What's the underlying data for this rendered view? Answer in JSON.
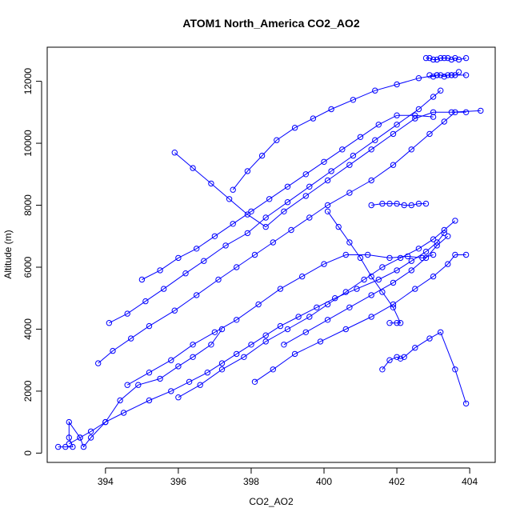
{
  "chart_data": {
    "type": "line",
    "title": "ATOM1 North_America CO2_AO2",
    "xlabel": "CO2_AO2",
    "ylabel": "Altitude (m)",
    "xlim": [
      392.4,
      404.7
    ],
    "ylim": [
      -300,
      13100
    ],
    "xticks": [
      394,
      396,
      398,
      400,
      402,
      404
    ],
    "yticks": [
      0,
      2000,
      4000,
      6000,
      8000,
      10000,
      12000
    ],
    "grid": false,
    "marker": "open-circle",
    "color": "#0000ff",
    "series": [
      {
        "profile": 1,
        "x": [
          392.7,
          392.9,
          393.1,
          393.0,
          393.0,
          393.3,
          393.4,
          393.6,
          394.0,
          394.4,
          394.9,
          395.5,
          396.0,
          396.4,
          396.9,
          397.2
        ],
        "y": [
          200,
          200,
          200,
          500,
          1000,
          500,
          200,
          500,
          1000,
          1700,
          2200,
          2400,
          2800,
          3100,
          3500,
          4000
        ]
      },
      {
        "profile": 2,
        "x": [
          393.0,
          393.3,
          393.6,
          394.0,
          394.5,
          395.2,
          395.8,
          396.3,
          396.8,
          397.2,
          397.6,
          398.0,
          398.4,
          398.8,
          399.3,
          399.8,
          400.3,
          400.9,
          401.5,
          402.0,
          402.4,
          402.8,
          403.1,
          403.3
        ],
        "y": [
          300,
          500,
          700,
          1000,
          1300,
          1700,
          2000,
          2300,
          2600,
          2900,
          3200,
          3500,
          3800,
          4100,
          4400,
          4700,
          5000,
          5300,
          5600,
          5900,
          6200,
          6500,
          6800,
          7100
        ]
      },
      {
        "profile": 3,
        "x": [
          393.8,
          394.2,
          394.7,
          395.2,
          395.9,
          396.5,
          397.1,
          397.6,
          398.1,
          398.6,
          399.1,
          399.6,
          400.1,
          400.7,
          401.3,
          401.9,
          402.4,
          402.9,
          403.3,
          403.6,
          403.9
        ],
        "y": [
          2900,
          3300,
          3700,
          4100,
          4600,
          5100,
          5600,
          6000,
          6400,
          6800,
          7200,
          7600,
          8000,
          8400,
          8800,
          9300,
          9800,
          10300,
          10700,
          11000,
          11000
        ]
      },
      {
        "profile": 4,
        "x": [
          394.1,
          394.6,
          395.1,
          395.6,
          396.2,
          396.7,
          397.3,
          397.9,
          398.4,
          399.0,
          399.6,
          400.2,
          400.8,
          401.4,
          402.0,
          402.6,
          403.0,
          403.2
        ],
        "y": [
          4200,
          4500,
          4900,
          5300,
          5800,
          6200,
          6700,
          7100,
          7600,
          8100,
          8600,
          9100,
          9600,
          10100,
          10600,
          11100,
          11500,
          11700
        ]
      },
      {
        "profile": 5,
        "x": [
          395.9,
          396.4,
          396.9,
          397.4,
          397.9,
          398.4,
          398.9,
          399.5,
          400.1,
          400.7,
          401.3,
          401.9,
          402.5,
          403.0,
          403.5,
          404.3
        ],
        "y": [
          9700,
          9200,
          8700,
          8200,
          7700,
          7300,
          7800,
          8300,
          8800,
          9300,
          9800,
          10300,
          10800,
          11000,
          11000,
          11050
        ]
      },
      {
        "profile": 6,
        "x": [
          397.5,
          397.9,
          398.3,
          398.7,
          399.2,
          399.7,
          400.2,
          400.8,
          401.4,
          402.0,
          402.6,
          403.1,
          403.5,
          403.9
        ],
        "y": [
          8500,
          9100,
          9600,
          10100,
          10500,
          10800,
          11100,
          11400,
          11700,
          11900,
          12100,
          12200,
          12200,
          12200
        ]
      },
      {
        "profile": 7,
        "x": [
          398.1,
          398.6,
          399.2,
          399.9,
          400.6,
          401.3,
          401.9,
          402.5,
          403.0,
          403.4,
          403.6,
          403.9
        ],
        "y": [
          2300,
          2700,
          3200,
          3600,
          4000,
          4400,
          4800,
          5300,
          5700,
          6100,
          6400,
          6400
        ]
      },
      {
        "profile": 8,
        "x": [
          396.0,
          396.6,
          397.2,
          397.8,
          398.4,
          399.0,
          399.6,
          400.1,
          400.6,
          401.1,
          401.6,
          402.1,
          402.6,
          403.0,
          403.3,
          403.6
        ],
        "y": [
          1800,
          2200,
          2700,
          3100,
          3600,
          4000,
          4400,
          4800,
          5200,
          5600,
          6000,
          6300,
          6600,
          6900,
          7200,
          7500
        ]
      },
      {
        "profile": 9,
        "x": [
          401.6,
          401.8,
          402.0,
          402.1,
          402.2,
          402.5,
          402.9,
          403.2,
          403.6,
          403.9
        ],
        "y": [
          2700,
          3000,
          3100,
          3050,
          3100,
          3400,
          3700,
          3900,
          2700,
          1600
        ]
      },
      {
        "profile": 10,
        "x": [
          401.8,
          402.0,
          402.1,
          401.9,
          401.6,
          401.3,
          401.0,
          400.7,
          400.4,
          400.1
        ],
        "y": [
          4200,
          4200,
          4200,
          4700,
          5200,
          5700,
          6300,
          6800,
          7300,
          7800
        ]
      },
      {
        "profile": 11,
        "x": [
          401.3,
          401.6,
          401.8,
          402.0,
          402.2,
          402.4,
          402.6,
          402.8
        ],
        "y": [
          8000,
          8050,
          8050,
          8050,
          8000,
          8000,
          8050,
          8050
        ]
      },
      {
        "profile": 12,
        "x": [
          402.8,
          402.9,
          403.0,
          403.1,
          403.2,
          403.3,
          403.4,
          403.5,
          403.6,
          403.7,
          403.9
        ],
        "y": [
          12750,
          12750,
          12700,
          12700,
          12750,
          12750,
          12750,
          12700,
          12750,
          12700,
          12750
        ]
      },
      {
        "profile": 13,
        "x": [
          402.9,
          403.0,
          403.1,
          403.2,
          403.3,
          403.4,
          403.5,
          403.6,
          403.7
        ],
        "y": [
          12200,
          12150,
          12200,
          12200,
          12150,
          12200,
          12200,
          12200,
          12300
        ]
      },
      {
        "profile": 14,
        "x": [
          394.6,
          395.2,
          395.8,
          396.4,
          397.0,
          397.6,
          398.2,
          398.8,
          399.4,
          400.0,
          400.6,
          401.2,
          401.8,
          402.3,
          402.7,
          403.0
        ],
        "y": [
          2200,
          2600,
          3000,
          3500,
          3900,
          4300,
          4800,
          5300,
          5700,
          6100,
          6400,
          6400,
          6300,
          6350,
          6300,
          6400
        ]
      },
      {
        "profile": 15,
        "x": [
          398.9,
          399.5,
          400.1,
          400.7,
          401.3,
          401.9,
          402.4,
          402.8,
          403.1,
          403.4
        ],
        "y": [
          3500,
          3900,
          4300,
          4700,
          5100,
          5500,
          5900,
          6300,
          6700,
          7000
        ]
      },
      {
        "profile": 16,
        "x": [
          395.0,
          395.5,
          396.0,
          396.5,
          397.0,
          397.5,
          398.0,
          398.5,
          399.0,
          399.5,
          400.0,
          400.5,
          401.0,
          401.5,
          402.0,
          402.5,
          403.0
        ],
        "y": [
          5600,
          5900,
          6300,
          6600,
          7000,
          7400,
          7800,
          8200,
          8600,
          9000,
          9400,
          9800,
          10200,
          10600,
          10900,
          10900,
          10850
        ]
      }
    ]
  }
}
